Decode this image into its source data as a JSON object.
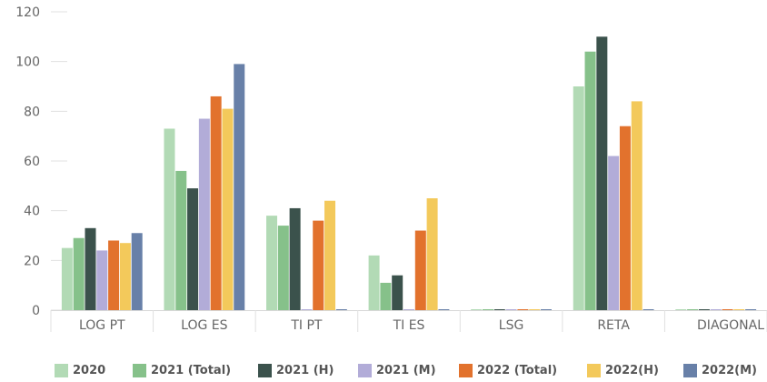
{
  "chart_data": {
    "type": "bar",
    "categories": [
      "LOG PT",
      "LOG ES",
      "TI PT",
      "TI ES",
      "LSG",
      "RETA",
      "DIAGONAL"
    ],
    "ylim": [
      0,
      120
    ],
    "yticks": [
      0,
      20,
      40,
      60,
      80,
      100,
      120
    ],
    "grid": false,
    "legend_position": "bottom",
    "series": [
      {
        "name": "2020",
        "color": "#b2dab5",
        "values": [
          25,
          73,
          38,
          22,
          0,
          90,
          0
        ]
      },
      {
        "name": "2021 (Total)",
        "color": "#86c18a",
        "values": [
          29,
          56,
          34,
          11,
          0,
          104,
          0
        ]
      },
      {
        "name": "2021 (H)",
        "color": "#3b524c",
        "values": [
          33,
          49,
          41,
          14,
          0,
          110,
          0
        ]
      },
      {
        "name": "2021 (M)",
        "color": "#b2acd8",
        "values": [
          24,
          77,
          0,
          0,
          0,
          62,
          0
        ]
      },
      {
        "name": "2022 (Total)",
        "color": "#e2722d",
        "values": [
          28,
          86,
          36,
          32,
          0,
          74,
          0
        ]
      },
      {
        "name": "2022(H)",
        "color": "#f3c95b",
        "values": [
          27,
          81,
          44,
          45,
          0,
          84,
          0
        ]
      },
      {
        "name": "2022(M)",
        "color": "#6880a8",
        "values": [
          31,
          99,
          0,
          0,
          0,
          0,
          0
        ]
      }
    ]
  }
}
